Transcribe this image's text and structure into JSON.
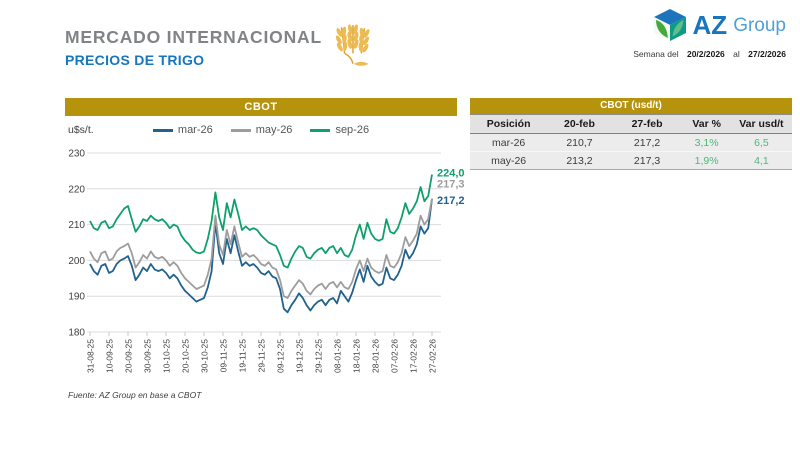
{
  "header": {
    "title": "MERCADO INTERNACIONAL",
    "subtitle": "PRECIOS DE TRIGO",
    "week_label": "Semana del",
    "week_from": "20/2/2026",
    "week_mid_label": "al",
    "week_to": "27/2/2026",
    "brand": {
      "name_bold": "AZ",
      "name_light": "Group"
    }
  },
  "chart_panel": {
    "header": "CBOT",
    "unit_label": "u$s/t.",
    "footer": "Fuente: AZ Group en base a CBOT"
  },
  "table_panel": {
    "header": "CBOT (usd/t)",
    "columns": [
      "Posición",
      "20-feb",
      "27-feb",
      "Var %",
      "Var usd/t"
    ],
    "rows": [
      {
        "posicion": "mar-26",
        "feb20": "210,7",
        "feb27": "217,2",
        "var_pct": "3,1%",
        "var_usd": "6,5"
      },
      {
        "posicion": "may-26",
        "feb20": "213,2",
        "feb27": "217,3",
        "var_pct": "1,9%",
        "var_usd": "4,1"
      }
    ]
  },
  "colors": {
    "gold": "#B6930D",
    "title_gray": "#818386",
    "title_blue": "#1776BE",
    "line_blue": "#20618E",
    "line_gray": "#9D9D9D",
    "line_green": "#0FA06B",
    "table_green": "#4BB878",
    "grid": "#DCDCDC"
  },
  "chart_data": {
    "type": "line",
    "title": "CBOT",
    "ylabel": "u$s/t.",
    "ylim": [
      180,
      230
    ],
    "yticks": [
      230,
      220,
      210,
      200,
      190,
      180
    ],
    "grid": true,
    "legend_position": "top",
    "points_per_tick": 5,
    "x_tick_labels": [
      "31-08-25",
      "10-09-25",
      "20-09-25",
      "30-09-25",
      "10-10-25",
      "20-10-25",
      "30-10-25",
      "09-11-25",
      "19-11-25",
      "29-11-25",
      "09-12-25",
      "19-12-25",
      "29-12-25",
      "08-01-26",
      "18-01-26",
      "28-01-26",
      "07-02-26",
      "17-02-26",
      "27-02-26"
    ],
    "series": [
      {
        "name": "mar-26",
        "color": "#20618E",
        "end_label": "217,2",
        "label_dy": 5,
        "values": [
          199.0,
          197.0,
          196.0,
          198.5,
          199.0,
          196.5,
          197.0,
          199.0,
          200.0,
          200.5,
          201.2,
          198.5,
          194.5,
          196.0,
          198.0,
          197.0,
          199.0,
          197.5,
          197.0,
          197.5,
          196.5,
          195.0,
          196.0,
          195.0,
          193.0,
          191.5,
          190.5,
          189.5,
          188.5,
          189.0,
          189.5,
          192.5,
          197.0,
          210.5,
          202.0,
          199.0,
          206.0,
          202.0,
          207.0,
          202.5,
          198.5,
          199.5,
          198.5,
          199.0,
          198.0,
          196.5,
          196.0,
          197.0,
          195.5,
          195.0,
          192.0,
          186.5,
          185.5,
          187.5,
          189.0,
          190.8,
          189.5,
          187.5,
          186.0,
          187.5,
          188.5,
          189.0,
          187.5,
          189.0,
          189.5,
          188.0,
          191.5,
          190.0,
          188.5,
          191.0,
          194.5,
          197.5,
          194.0,
          198.5,
          195.5,
          194.0,
          193.0,
          193.5,
          198.0,
          195.0,
          194.5,
          196.0,
          198.5,
          203.0,
          200.5,
          202.0,
          204.5,
          209.5,
          207.5,
          209.0,
          217.2
        ]
      },
      {
        "name": "may-26",
        "color": "#9D9D9D",
        "end_label": "217,3",
        "label_dy": -11,
        "values": [
          202.5,
          200.5,
          199.5,
          202.0,
          202.5,
          200.0,
          200.5,
          202.5,
          203.5,
          204.0,
          204.7,
          202.0,
          198.0,
          199.5,
          201.5,
          200.5,
          202.5,
          201.0,
          200.5,
          201.0,
          200.0,
          198.5,
          199.5,
          198.5,
          196.5,
          195.0,
          194.0,
          193.0,
          192.0,
          192.5,
          193.0,
          196.0,
          200.5,
          212.5,
          204.5,
          201.5,
          208.5,
          204.5,
          209.5,
          205.0,
          201.0,
          202.0,
          201.0,
          201.5,
          200.5,
          199.0,
          198.5,
          199.5,
          198.0,
          197.5,
          194.5,
          190.0,
          189.5,
          191.5,
          193.0,
          194.5,
          193.5,
          191.5,
          190.5,
          192.0,
          193.0,
          193.5,
          192.0,
          193.5,
          194.0,
          192.5,
          194.0,
          192.5,
          192.0,
          194.0,
          197.5,
          200.0,
          197.0,
          200.5,
          198.0,
          197.0,
          196.5,
          197.0,
          201.5,
          198.5,
          198.0,
          199.5,
          202.0,
          206.5,
          204.0,
          205.5,
          207.5,
          212.5,
          210.0,
          211.5,
          217.3
        ]
      },
      {
        "name": "sep-26",
        "color": "#0FA06B",
        "end_label": "224,0",
        "label_dy": 2,
        "values": [
          211.0,
          209.0,
          208.5,
          210.5,
          211.0,
          209.0,
          209.5,
          211.5,
          213.0,
          214.5,
          215.2,
          211.5,
          208.0,
          209.5,
          211.5,
          211.0,
          212.5,
          211.5,
          211.0,
          211.5,
          210.5,
          209.0,
          210.0,
          209.5,
          207.0,
          205.5,
          204.5,
          203.0,
          202.2,
          202.0,
          202.5,
          206.0,
          211.0,
          219.0,
          212.0,
          208.5,
          216.0,
          212.0,
          217.0,
          213.0,
          208.5,
          209.5,
          208.5,
          209.0,
          208.5,
          207.0,
          206.0,
          205.0,
          204.5,
          204.0,
          201.5,
          198.5,
          198.0,
          200.5,
          202.5,
          204.0,
          203.5,
          201.0,
          200.5,
          202.0,
          203.0,
          203.5,
          202.0,
          203.5,
          204.0,
          202.0,
          203.5,
          201.5,
          201.0,
          203.0,
          207.0,
          210.0,
          206.0,
          210.5,
          207.5,
          206.0,
          205.5,
          206.0,
          211.5,
          208.0,
          207.5,
          209.0,
          212.0,
          216.0,
          213.0,
          214.5,
          216.5,
          220.5,
          216.5,
          218.0,
          224.0
        ]
      }
    ]
  }
}
